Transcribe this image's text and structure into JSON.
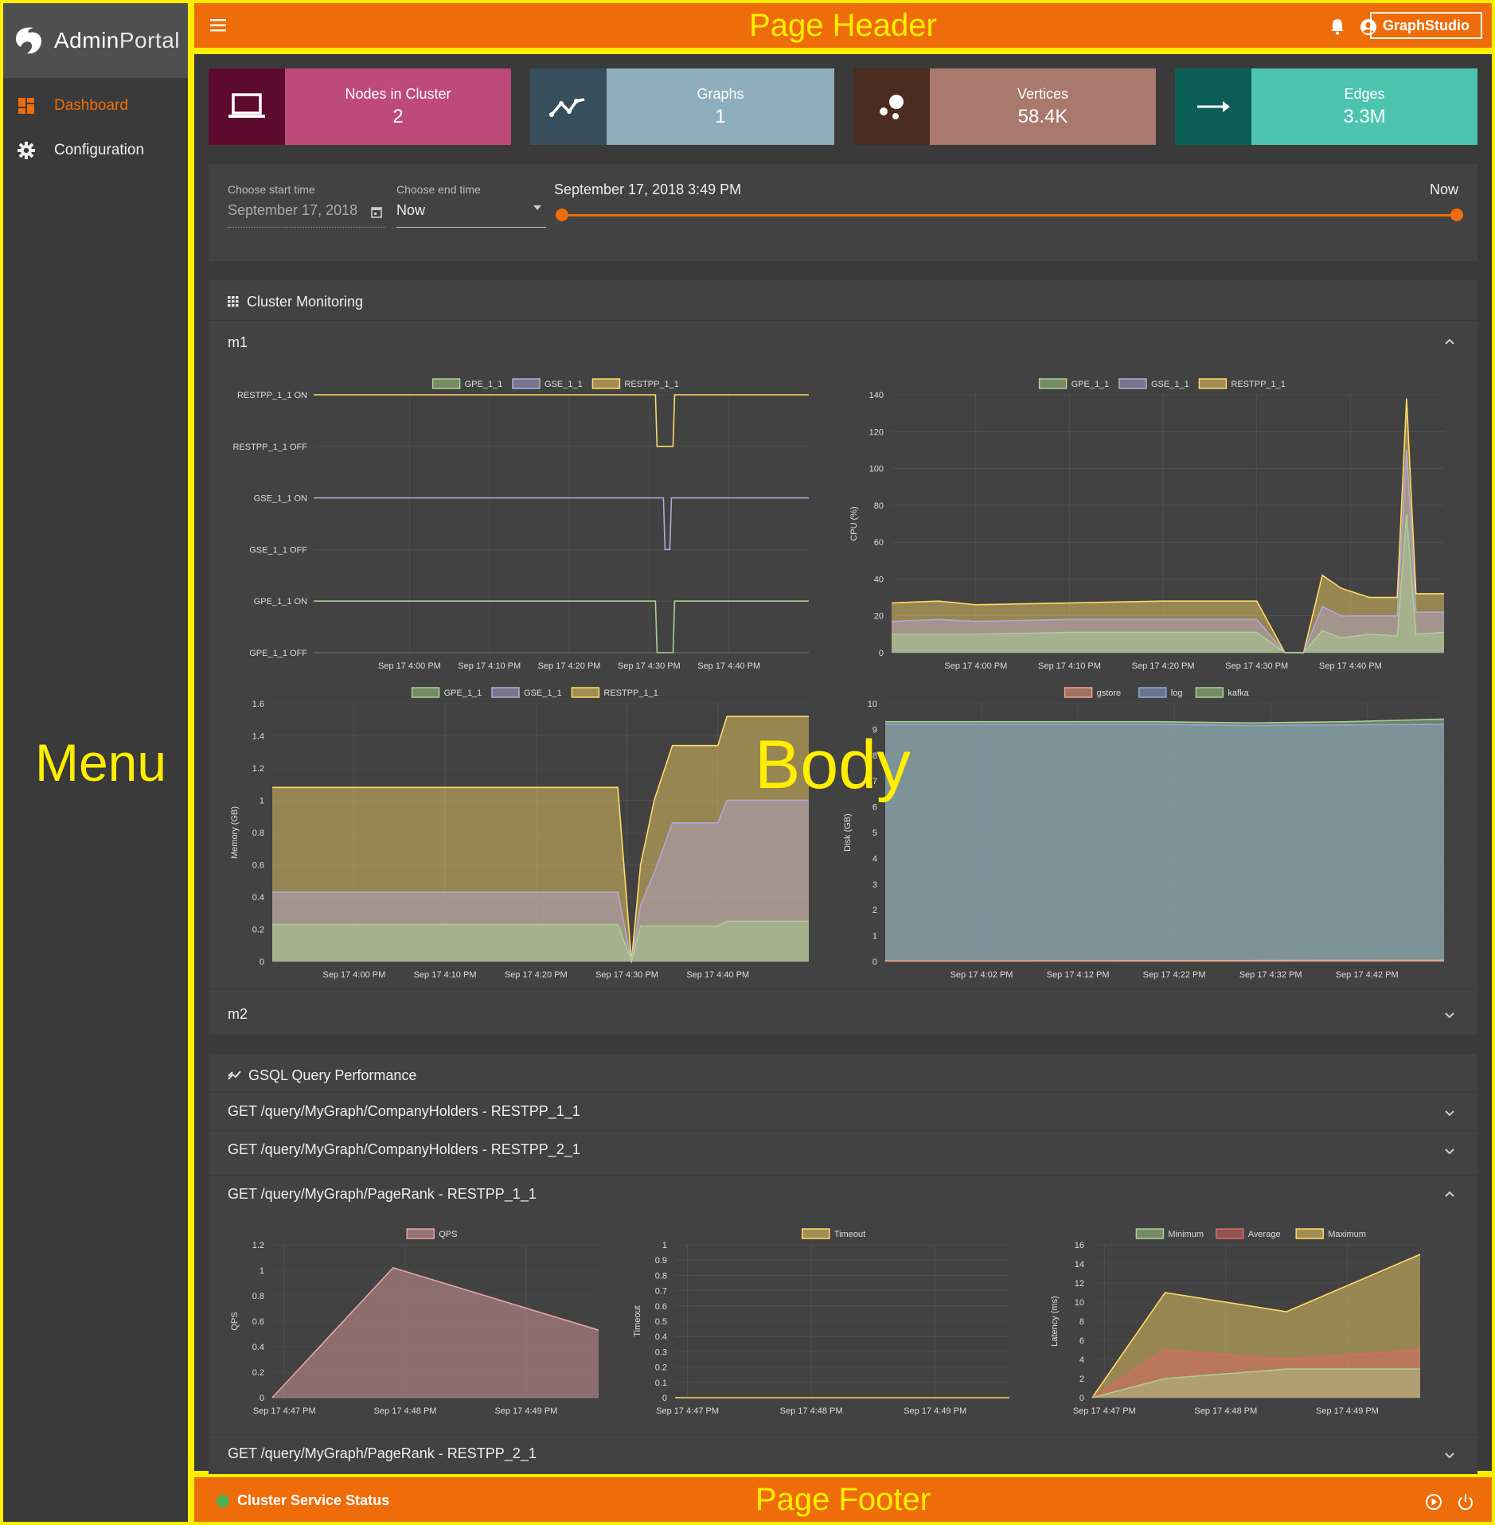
{
  "header": {
    "title": "Page Header",
    "graphstudio_label": "GraphStudio",
    "icons": [
      "menu-icon",
      "bell-icon",
      "account-icon"
    ]
  },
  "sidebar": {
    "app_name_part1": "Admin",
    "app_name_part2": "Portal",
    "items": [
      {
        "label": "Dashboard",
        "icon": "dashboard-icon",
        "active": true
      },
      {
        "label": "Configuration",
        "icon": "gear-icon",
        "active": false
      }
    ],
    "overlay_label": "Menu"
  },
  "body_overlay_label": "Body",
  "footer": {
    "title": "Page Footer",
    "status_label": "Cluster Service Status",
    "status_color": "#4caf50"
  },
  "colors": {
    "accent": "#ee6d0a",
    "annotation": "#ffee00"
  },
  "stats": [
    {
      "label": "Nodes in Cluster",
      "value": "2",
      "icon": "laptop-icon",
      "icon_bg": "#5c0a2e",
      "bg": "#be4a79"
    },
    {
      "label": "Graphs",
      "value": "1",
      "icon": "trend-icon",
      "icon_bg": "#374f5c",
      "bg": "#8eaebd"
    },
    {
      "label": "Vertices",
      "value": "58.4K",
      "icon": "vertices-icon",
      "icon_bg": "#4a2c21",
      "bg": "#a8796c"
    },
    {
      "label": "Edges",
      "value": "3.3M",
      "icon": "arrow-right-icon",
      "icon_bg": "#0b5e55",
      "bg": "#4cc4b0"
    }
  ],
  "time": {
    "start_label": "Choose start time",
    "start_value": "September 17, 2018",
    "end_label": "Choose end time",
    "end_value": "Now",
    "range_start": "September 17, 2018 3:49 PM",
    "range_end": "Now"
  },
  "cluster": {
    "title": "Cluster Monitoring",
    "m1": "m1",
    "m2": "m2"
  },
  "gsql": {
    "title": "GSQL Query Performance",
    "queries": [
      "GET /query/MyGraph/CompanyHolders - RESTPP_1_1",
      "GET /query/MyGraph/CompanyHolders - RESTPP_2_1",
      "GET /query/MyGraph/PageRank - RESTPP_1_1",
      "GET /query/MyGraph/PageRank - RESTPP_2_1"
    ]
  },
  "chart_data": [
    {
      "id": "status",
      "type": "line",
      "legend": [
        "GPE_1_1",
        "GSE_1_1",
        "RESTPP_1_1"
      ],
      "categories": [
        "RESTPP_1_1 ON",
        "RESTPP_1_1 OFF",
        "GSE_1_1 ON",
        "GSE_1_1 OFF",
        "GPE_1_1 ON",
        "GPE_1_1 OFF"
      ],
      "x": [
        "Sep 17 4:00 PM",
        "Sep 17 4:10 PM",
        "Sep 17 4:20 PM",
        "Sep 17 4:30 PM",
        "Sep 17 4:40 PM"
      ],
      "xlim_min": [
        -12,
        50
      ],
      "series": [
        {
          "name": "GPE_1_1",
          "color": "#a9d18e",
          "state": [
            [
              -12,
              1
            ],
            [
              30.8,
              1
            ],
            [
              31,
              0
            ],
            [
              33,
              0
            ],
            [
              33.2,
              1
            ],
            [
              50,
              1
            ]
          ]
        },
        {
          "name": "GSE_1_1",
          "color": "#b4a7d6",
          "state": [
            [
              -12,
              1
            ],
            [
              31.8,
              1
            ],
            [
              32,
              0
            ],
            [
              32.6,
              0
            ],
            [
              32.8,
              1
            ],
            [
              50,
              1
            ]
          ]
        },
        {
          "name": "RESTPP_1_1",
          "color": "#ffd966",
          "state": [
            [
              -12,
              1
            ],
            [
              30.8,
              1
            ],
            [
              31,
              0
            ],
            [
              33,
              0
            ],
            [
              33.2,
              1
            ],
            [
              50,
              1
            ]
          ]
        }
      ]
    },
    {
      "id": "cpu",
      "type": "area",
      "ylabel": "CPU (%)",
      "ylim": [
        0,
        140
      ],
      "yticks": [
        0,
        20,
        40,
        60,
        80,
        100,
        120,
        140
      ],
      "legend": [
        "GPE_1_1",
        "GSE_1_1",
        "RESTPP_1_1"
      ],
      "x": [
        "Sep 17 4:00 PM",
        "Sep 17 4:10 PM",
        "Sep 17 4:20 PM",
        "Sep 17 4:30 PM",
        "Sep 17 4:40 PM"
      ],
      "xlim_min": [
        -9,
        50
      ],
      "series": [
        {
          "name": "GPE_1_1",
          "color": "#a9d18e",
          "values": [
            [
              -9,
              10
            ],
            [
              -4,
              10
            ],
            [
              0,
              10
            ],
            [
              10,
              11
            ],
            [
              20,
              11
            ],
            [
              30,
              11
            ],
            [
              33,
              0
            ],
            [
              35,
              0
            ],
            [
              37,
              12
            ],
            [
              39,
              8
            ],
            [
              42,
              10
            ],
            [
              45,
              9
            ],
            [
              46,
              75
            ],
            [
              47,
              10
            ],
            [
              50,
              11
            ]
          ]
        },
        {
          "name": "GSE_1_1",
          "color": "#b4a7d6",
          "values": [
            [
              -9,
              17
            ],
            [
              -4,
              18
            ],
            [
              0,
              17
            ],
            [
              10,
              18
            ],
            [
              20,
              18
            ],
            [
              30,
              18
            ],
            [
              33,
              0
            ],
            [
              35,
              0
            ],
            [
              37,
              25
            ],
            [
              39,
              20
            ],
            [
              42,
              20
            ],
            [
              45,
              20
            ],
            [
              46,
              110
            ],
            [
              47,
              22
            ],
            [
              50,
              22
            ]
          ]
        },
        {
          "name": "RESTPP_1_1",
          "color": "#ffd966",
          "values": [
            [
              -9,
              27
            ],
            [
              -4,
              28
            ],
            [
              0,
              26
            ],
            [
              10,
              27
            ],
            [
              20,
              28
            ],
            [
              30,
              28
            ],
            [
              33,
              0
            ],
            [
              35,
              0
            ],
            [
              37,
              42
            ],
            [
              39,
              35
            ],
            [
              42,
              30
            ],
            [
              45,
              30
            ],
            [
              46,
              138
            ],
            [
              47,
              32
            ],
            [
              50,
              32
            ]
          ]
        }
      ]
    },
    {
      "id": "memory",
      "type": "area",
      "ylabel": "Memory (GB)",
      "ylim": [
        0,
        1.6
      ],
      "yticks": [
        0,
        0.2,
        0.4,
        0.6,
        0.8,
        1.0,
        1.2,
        1.4,
        1.6
      ],
      "legend": [
        "GPE_1_1",
        "GSE_1_1",
        "RESTPP_1_1"
      ],
      "x": [
        "Sep 17 4:00 PM",
        "Sep 17 4:10 PM",
        "Sep 17 4:20 PM",
        "Sep 17 4:30 PM",
        "Sep 17 4:40 PM"
      ],
      "xlim_min": [
        -9,
        50
      ],
      "series": [
        {
          "name": "GPE_1_1",
          "color": "#a9d18e",
          "values": [
            [
              -9,
              0.23
            ],
            [
              29,
              0.23
            ],
            [
              30.5,
              0
            ],
            [
              31.5,
              0.22
            ],
            [
              35,
              0.22
            ],
            [
              40,
              0.22
            ],
            [
              41,
              0.25
            ],
            [
              50,
              0.25
            ]
          ]
        },
        {
          "name": "GSE_1_1",
          "color": "#b4a7d6",
          "values": [
            [
              -9,
              0.43
            ],
            [
              29,
              0.43
            ],
            [
              30.5,
              0
            ],
            [
              31.5,
              0.35
            ],
            [
              33,
              0.55
            ],
            [
              35,
              0.86
            ],
            [
              40,
              0.86
            ],
            [
              41,
              1.0
            ],
            [
              50,
              1.0
            ]
          ]
        },
        {
          "name": "RESTPP_1_1",
          "color": "#ffd966",
          "values": [
            [
              -9,
              1.08
            ],
            [
              29,
              1.08
            ],
            [
              30.5,
              0
            ],
            [
              31.5,
              0.6
            ],
            [
              33,
              1.0
            ],
            [
              35,
              1.34
            ],
            [
              40,
              1.34
            ],
            [
              41,
              1.52
            ],
            [
              50,
              1.52
            ]
          ]
        }
      ]
    },
    {
      "id": "disk",
      "type": "area",
      "ylabel": "Disk (GB)",
      "ylim": [
        0,
        10
      ],
      "yticks": [
        0,
        1,
        2,
        3,
        4,
        5,
        6,
        7,
        8,
        9,
        10
      ],
      "legend": [
        "gstore",
        "log",
        "kafka"
      ],
      "x": [
        "Sep 17 4:02 PM",
        "Sep 17 4:12 PM",
        "Sep 17 4:22 PM",
        "Sep 17 4:32 PM",
        "Sep 17 4:42 PM"
      ],
      "xlim_min": [
        -8,
        50
      ],
      "series": [
        {
          "name": "gstore",
          "color": "#f4a582",
          "values": [
            [
              -8,
              0.02
            ],
            [
              50,
              0.05
            ]
          ]
        },
        {
          "name": "log",
          "color": "#8fa8d8",
          "values": [
            [
              -8,
              9.2
            ],
            [
              20,
              9.2
            ],
            [
              30,
              9.15
            ],
            [
              50,
              9.2
            ]
          ]
        },
        {
          "name": "kafka",
          "color": "#a9d18e",
          "values": [
            [
              -8,
              9.3
            ],
            [
              20,
              9.3
            ],
            [
              30,
              9.25
            ],
            [
              40,
              9.3
            ],
            [
              50,
              9.4
            ]
          ]
        }
      ]
    },
    {
      "id": "qps",
      "type": "area",
      "ylabel": "QPS",
      "ylim": [
        0,
        1.2
      ],
      "yticks": [
        0,
        0.2,
        0.4,
        0.6,
        0.8,
        1.0,
        1.2
      ],
      "legend": [
        "QPS"
      ],
      "x": [
        "Sep 17 4:47 PM",
        "Sep 17 4:48 PM",
        "Sep 17 4:49 PM"
      ],
      "xlim_min": [
        46.9,
        49.6
      ],
      "series": [
        {
          "name": "QPS",
          "color": "#e6a5a5",
          "values": [
            [
              46.9,
              0
            ],
            [
              47.9,
              1.02
            ],
            [
              49.6,
              0.53
            ]
          ]
        }
      ]
    },
    {
      "id": "timeout",
      "type": "area",
      "ylabel": "Timeout",
      "ylim": [
        0,
        1.0
      ],
      "yticks": [
        0,
        0.1,
        0.2,
        0.3,
        0.4,
        0.5,
        0.6,
        0.7,
        0.8,
        0.9,
        1.0
      ],
      "legend": [
        "Timeout"
      ],
      "x": [
        "Sep 17 4:47 PM",
        "Sep 17 4:48 PM",
        "Sep 17 4:49 PM"
      ],
      "xlim_min": [
        46.9,
        49.6
      ],
      "series": [
        {
          "name": "Timeout",
          "color": "#ffd966",
          "values": [
            [
              46.9,
              0
            ],
            [
              49.6,
              0
            ]
          ]
        }
      ]
    },
    {
      "id": "latency",
      "type": "area",
      "ylabel": "Latency (ms)",
      "ylim": [
        0,
        16
      ],
      "yticks": [
        0,
        2,
        4,
        6,
        8,
        10,
        12,
        14,
        16
      ],
      "legend": [
        "Minimum",
        "Average",
        "Maximum"
      ],
      "x": [
        "Sep 17 4:47 PM",
        "Sep 17 4:48 PM",
        "Sep 17 4:49 PM"
      ],
      "xlim_min": [
        46.9,
        49.6
      ],
      "series": [
        {
          "name": "Minimum",
          "color": "#a9d18e",
          "values": [
            [
              46.9,
              0
            ],
            [
              47.5,
              2
            ],
            [
              48.5,
              3
            ],
            [
              49.6,
              3
            ]
          ]
        },
        {
          "name": "Average",
          "color": "#e06666",
          "values": [
            [
              46.9,
              0
            ],
            [
              47.5,
              5
            ],
            [
              48.5,
              4
            ],
            [
              49.6,
              5
            ]
          ]
        },
        {
          "name": "Maximum",
          "color": "#ffd966",
          "values": [
            [
              46.9,
              0
            ],
            [
              47.5,
              11
            ],
            [
              48.5,
              9
            ],
            [
              49.6,
              15
            ]
          ]
        }
      ]
    }
  ]
}
